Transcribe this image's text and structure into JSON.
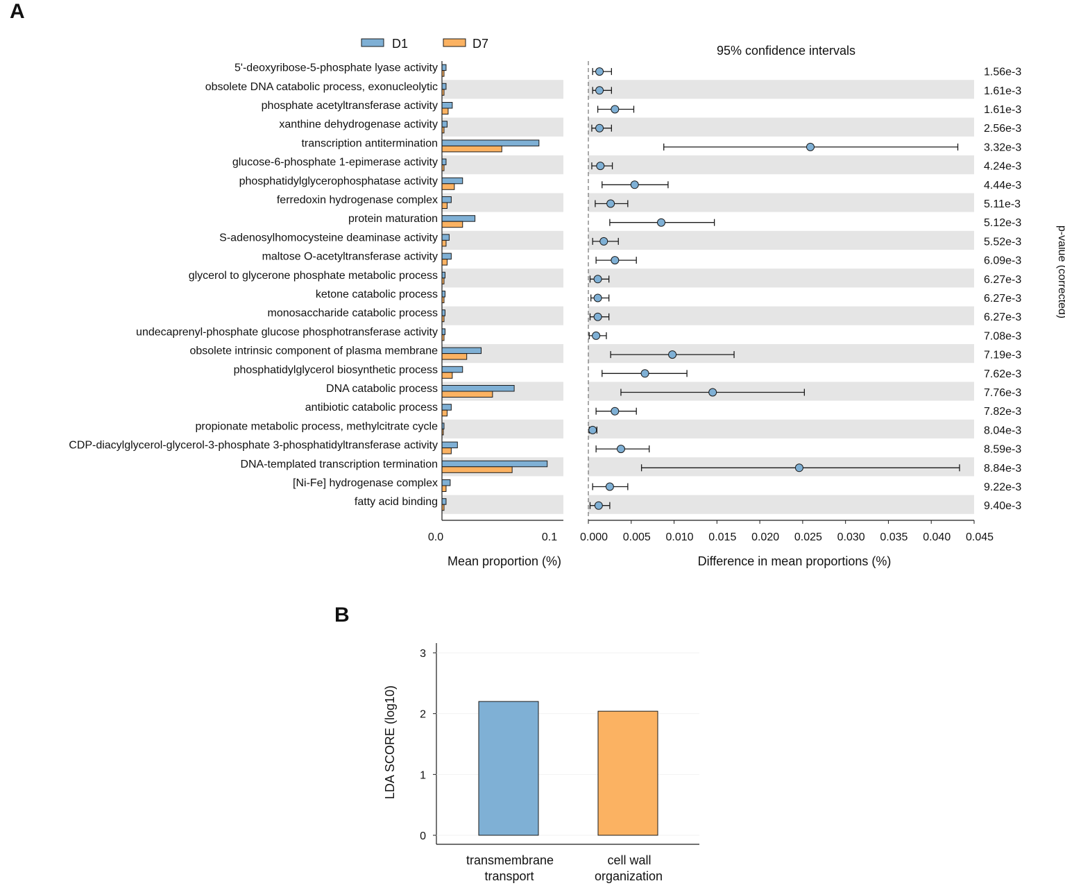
{
  "panels": {
    "a_label": "A",
    "b_label": "B"
  },
  "colors": {
    "d1": "#7fb0d5",
    "d7": "#fbb262",
    "stripe": "#e5e5e5",
    "stroke": "#1a1a1a"
  },
  "chart_data": [
    {
      "type": "bar",
      "id": "mean-proportion",
      "orientation": "horizontal",
      "categories": [
        "5'-deoxyribose-5-phosphate lyase activity",
        "obsolete DNA catabolic process, exonucleolytic",
        "phosphate acetyltransferase activity",
        "xanthine dehydrogenase activity",
        "transcription antitermination",
        "glucose-6-phosphate 1-epimerase activity",
        "phosphatidylglycerophosphatase activity",
        "ferredoxin hydrogenase complex",
        "protein maturation",
        "S-adenosylhomocysteine deaminase activity",
        "maltose O-acetyltransferase activity",
        "glycerol to glycerone phosphate metabolic process",
        "ketone catabolic process",
        "monosaccharide catabolic process",
        "undecaprenyl-phosphate glucose phosphotransferase activity",
        "obsolete intrinsic component of plasma membrane",
        "phosphatidylglycerol biosynthetic process",
        "DNA catabolic process",
        "antibiotic catabolic process",
        "propionate metabolic process, methylcitrate cycle",
        "CDP-diacylglycerol-glycerol-3-phosphate 3-phosphatidyltransferase activity",
        "DNA-templated transcription termination",
        "[Ni-Fe] hydrogenase complex",
        "fatty acid binding"
      ],
      "series": [
        {
          "name": "D1",
          "values": [
            0.004,
            0.004,
            0.01,
            0.005,
            0.094,
            0.004,
            0.02,
            0.009,
            0.032,
            0.007,
            0.009,
            0.003,
            0.003,
            0.003,
            0.003,
            0.038,
            0.02,
            0.07,
            0.009,
            0.002,
            0.015,
            0.102,
            0.008,
            0.004
          ]
        },
        {
          "name": "D7",
          "values": [
            0.002,
            0.002,
            0.006,
            0.002,
            0.058,
            0.002,
            0.012,
            0.005,
            0.02,
            0.004,
            0.005,
            0.002,
            0.002,
            0.002,
            0.002,
            0.024,
            0.01,
            0.049,
            0.005,
            0.001,
            0.009,
            0.068,
            0.004,
            0.002
          ]
        }
      ],
      "xlim": [
        0,
        0.11
      ],
      "xticks": [
        "0.0",
        "0.1"
      ],
      "xlabel": "Mean proportion (%)",
      "legend": [
        "D1",
        "D7"
      ]
    },
    {
      "type": "scatter",
      "id": "confidence-intervals",
      "title": "95% confidence intervals",
      "x": [
        0.0013,
        0.0013,
        0.0031,
        0.0013,
        0.0259,
        0.0014,
        0.0054,
        0.0026,
        0.0085,
        0.0018,
        0.0031,
        0.0011,
        0.0011,
        0.0011,
        0.0009,
        0.0098,
        0.0066,
        0.0145,
        0.0031,
        0.0005,
        0.0038,
        0.0246,
        0.0025,
        0.0012
      ],
      "ci_low": [
        0.0005,
        0.0005,
        0.0011,
        0.0004,
        0.0088,
        0.0004,
        0.0016,
        0.0008,
        0.0025,
        0.0005,
        0.0009,
        0.0002,
        0.0003,
        0.0002,
        0.0001,
        0.0026,
        0.0016,
        0.0038,
        0.0009,
        0.0001,
        0.0009,
        0.0062,
        0.0005,
        0.0002
      ],
      "ci_high": [
        0.0027,
        0.0027,
        0.0053,
        0.0027,
        0.0431,
        0.0028,
        0.0093,
        0.0046,
        0.0147,
        0.0035,
        0.0056,
        0.0024,
        0.0024,
        0.0024,
        0.0021,
        0.017,
        0.0115,
        0.0252,
        0.0056,
        0.001,
        0.0071,
        0.0433,
        0.0046,
        0.0025
      ],
      "p_values": [
        "1.56e-3",
        "1.61e-3",
        "1.61e-3",
        "2.56e-3",
        "3.32e-3",
        "4.24e-3",
        "4.44e-3",
        "5.11e-3",
        "5.12e-3",
        "5.52e-3",
        "6.09e-3",
        "6.27e-3",
        "6.27e-3",
        "6.27e-3",
        "7.08e-3",
        "7.19e-3",
        "7.62e-3",
        "7.76e-3",
        "7.82e-3",
        "8.04e-3",
        "8.59e-3",
        "8.84e-3",
        "9.22e-3",
        "9.40e-3"
      ],
      "xlim": [
        0,
        0.045
      ],
      "xticks": [
        "0.000",
        "0.005",
        "0.010",
        "0.015",
        "0.020",
        "0.025",
        "0.030",
        "0.035",
        "0.040",
        "0.045"
      ],
      "xlabel": "Difference in mean proportions (%)",
      "ylabel_right": "p-value (corrected)"
    },
    {
      "type": "bar",
      "id": "lda-score",
      "categories": [
        [
          "transmembrane",
          "transport"
        ],
        [
          "cell wall",
          "organization"
        ]
      ],
      "values": [
        2.2,
        2.04
      ],
      "bar_colors": [
        "#7fb0d5",
        "#fbb262"
      ],
      "ylim": [
        0,
        3
      ],
      "yticks": [
        "0",
        "1",
        "2",
        "3"
      ],
      "ylabel": "LDA SCORE (log10)"
    }
  ]
}
